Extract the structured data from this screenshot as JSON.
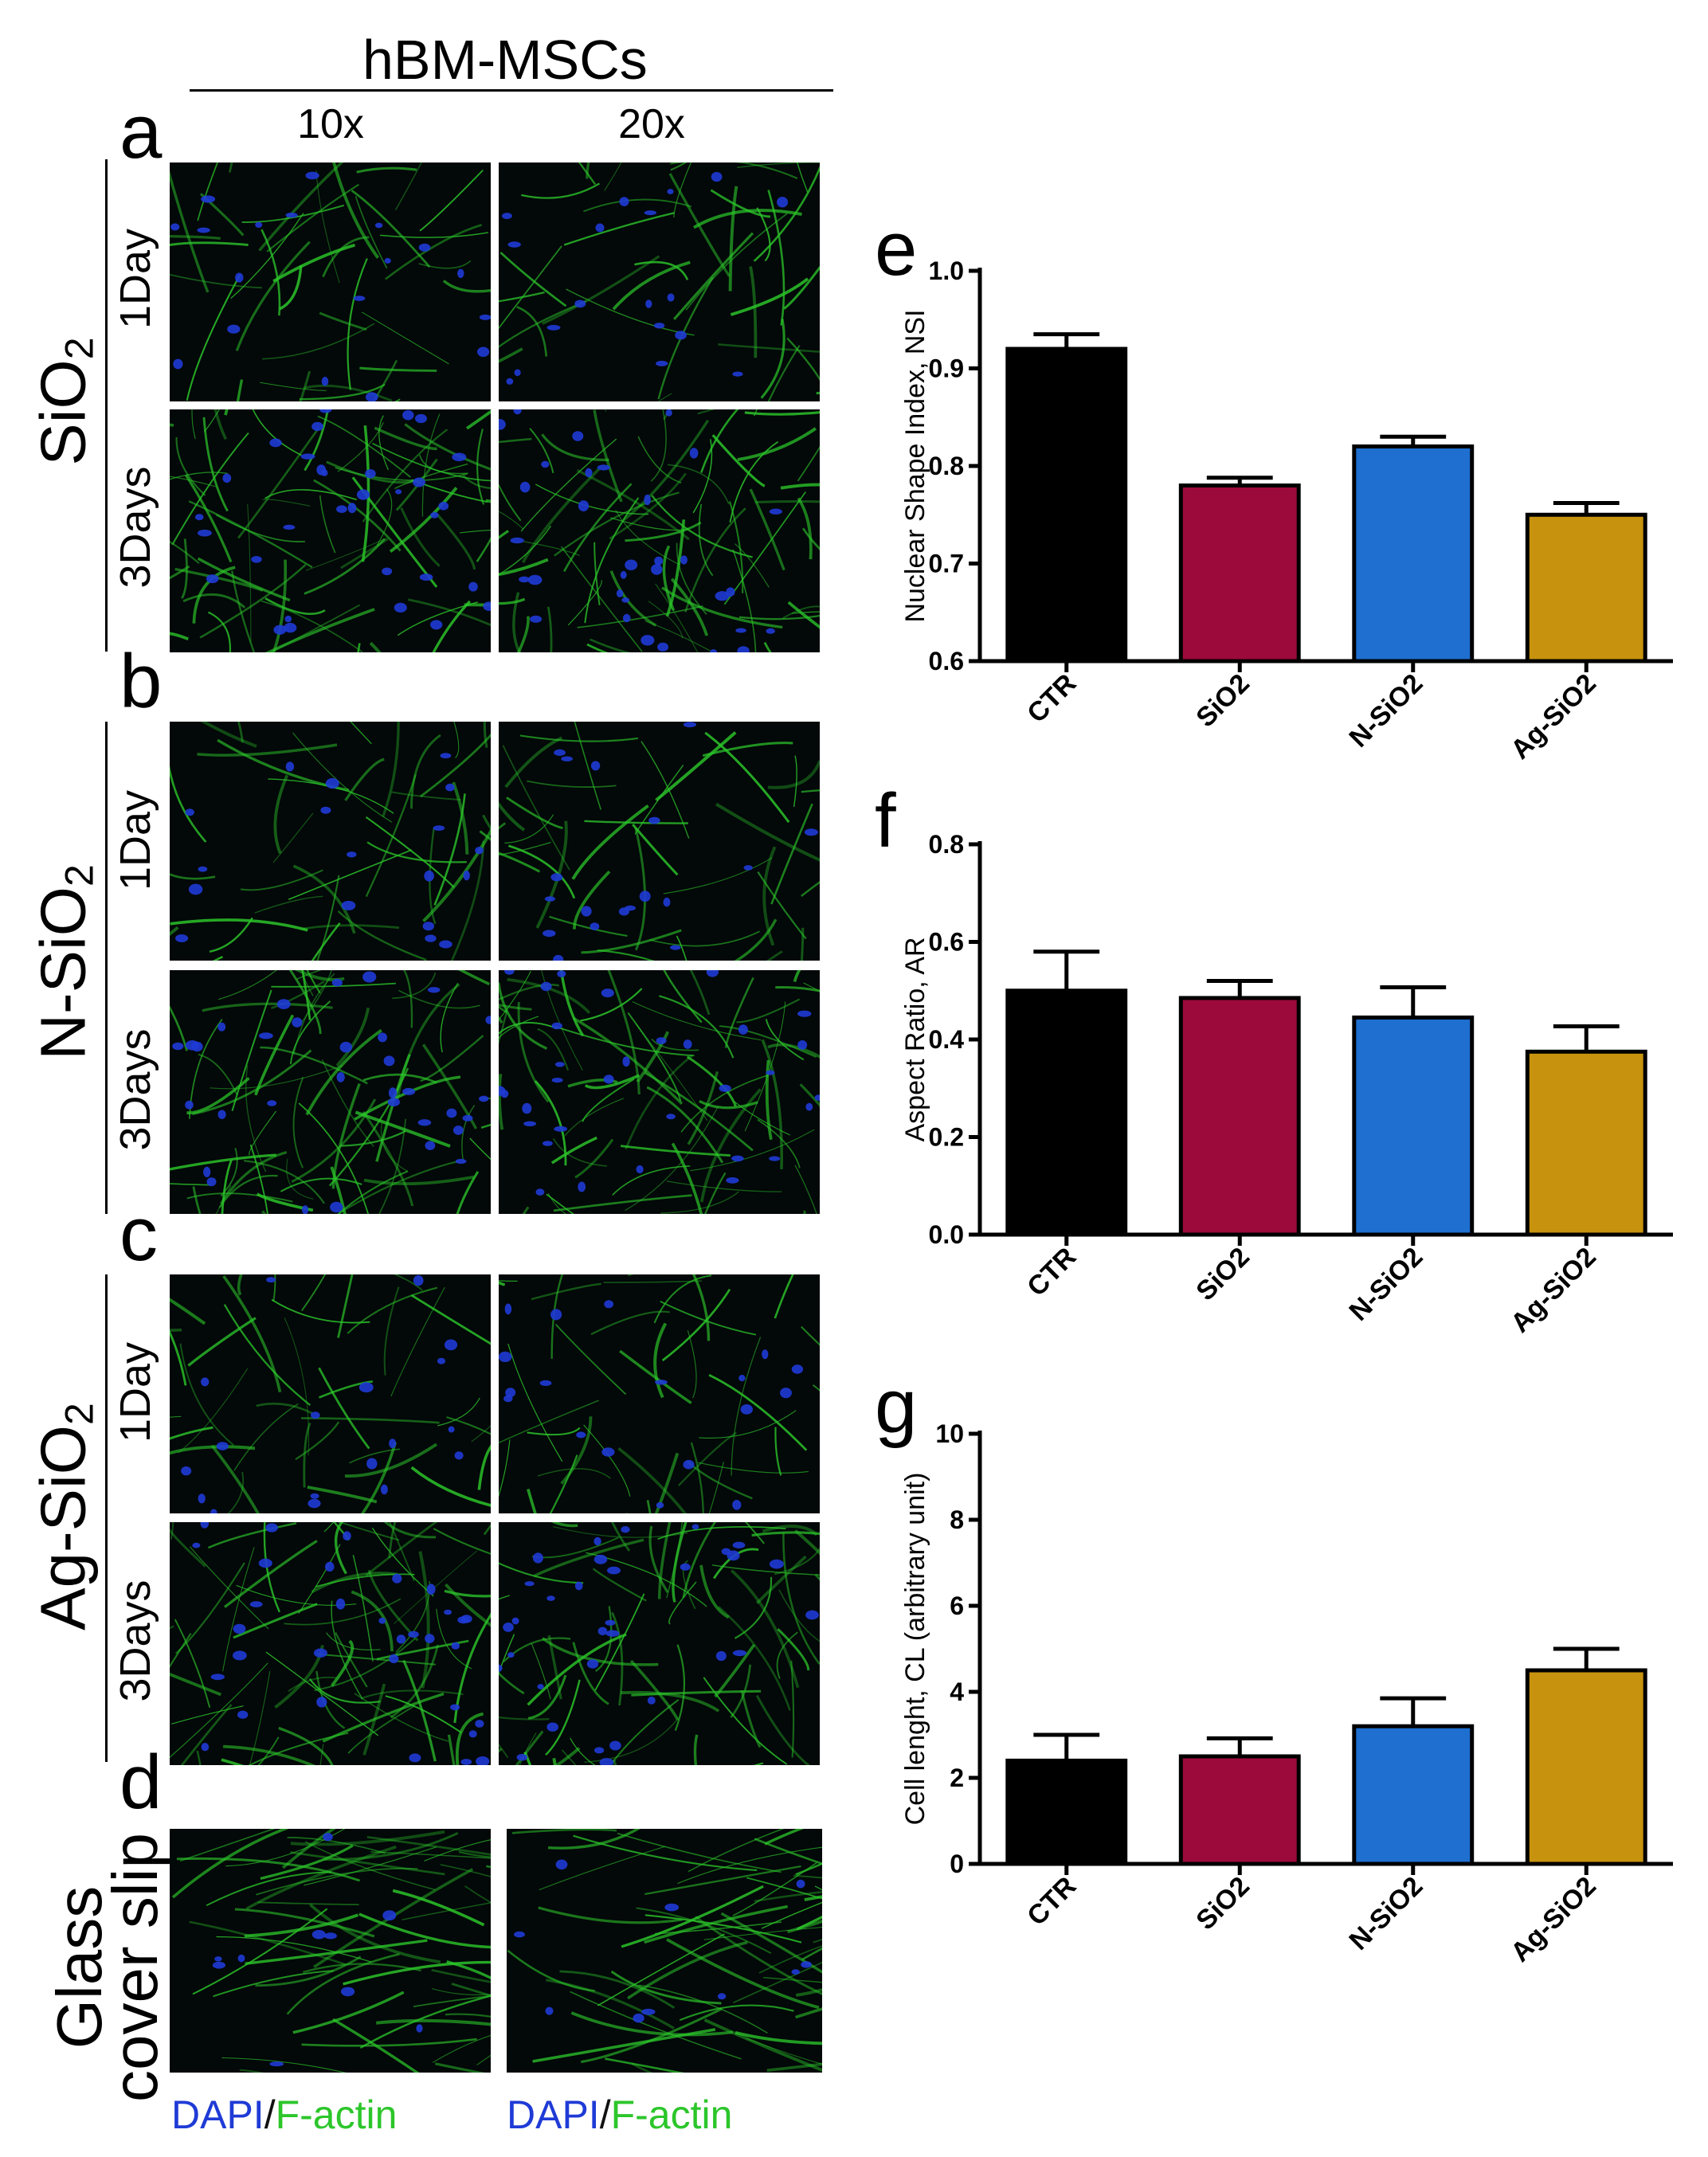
{
  "header": {
    "title": "hBM-MSCs",
    "mag_10x": "10x",
    "mag_20x": "20x"
  },
  "panels": {
    "a": "a",
    "b": "b",
    "c": "c",
    "d": "d",
    "e": "e",
    "f": "f",
    "g": "g"
  },
  "groups": {
    "sio2": {
      "main": "SiO",
      "sub": "2"
    },
    "nsio2": {
      "main": "N-SiO",
      "sub": "2"
    },
    "agsio2": {
      "main": "Ag-SiO",
      "sub": "2"
    },
    "glass_line1": "Glass",
    "glass_line2": "cover slip"
  },
  "time_labels": {
    "day1": "1Day",
    "day3": "3Days"
  },
  "legend": {
    "dapi": "DAPI",
    "sep": "/",
    "factin": "F-actin"
  },
  "colors": {
    "CTR": "#000000",
    "SiO2": "#9c0a3c",
    "N-SiO2": "#1e6fd0",
    "Ag-SiO2": "#c7930e",
    "dapi": "#1f3bd6",
    "factin": "#2cc62a"
  },
  "chart_data": [
    {
      "panel": "e",
      "type": "bar",
      "categories": [
        "CTR",
        "SiO2",
        "N-SiO2",
        "Ag-SiO2"
      ],
      "values": [
        0.92,
        0.78,
        0.82,
        0.75
      ],
      "errors": [
        0.015,
        0.008,
        0.01,
        0.012
      ],
      "ylabel": "Nuclear Shape Index, NSI",
      "ylim": [
        0.6,
        1.0
      ],
      "yticks": [
        "0.6",
        "0.7",
        "0.8",
        "0.9",
        "1.0"
      ],
      "ytick_values": [
        0.6,
        0.7,
        0.8,
        0.9,
        1.0
      ]
    },
    {
      "panel": "f",
      "type": "bar",
      "categories": [
        "CTR",
        "SiO2",
        "N-SiO2",
        "Ag-SiO2"
      ],
      "values": [
        0.5,
        0.485,
        0.445,
        0.375
      ],
      "errors": [
        0.08,
        0.035,
        0.062,
        0.052
      ],
      "ylabel": "Aspect Ratio, AR",
      "ylim": [
        0.0,
        0.8
      ],
      "yticks": [
        "0.0",
        "0.2",
        "0.4",
        "0.6",
        "0.8"
      ],
      "ytick_values": [
        0.0,
        0.2,
        0.4,
        0.6,
        0.8
      ]
    },
    {
      "panel": "g",
      "type": "bar",
      "categories": [
        "CTR",
        "SiO2",
        "N-SiO2",
        "Ag-SiO2"
      ],
      "values": [
        2.4,
        2.5,
        3.2,
        4.5
      ],
      "errors": [
        0.6,
        0.42,
        0.65,
        0.5
      ],
      "ylabel": "Cell lenght, CL (arbitrary unit)",
      "ylim": [
        0,
        10
      ],
      "yticks": [
        "0",
        "2",
        "4",
        "6",
        "8",
        "10"
      ],
      "ytick_values": [
        0,
        2,
        4,
        6,
        8,
        10
      ]
    }
  ]
}
